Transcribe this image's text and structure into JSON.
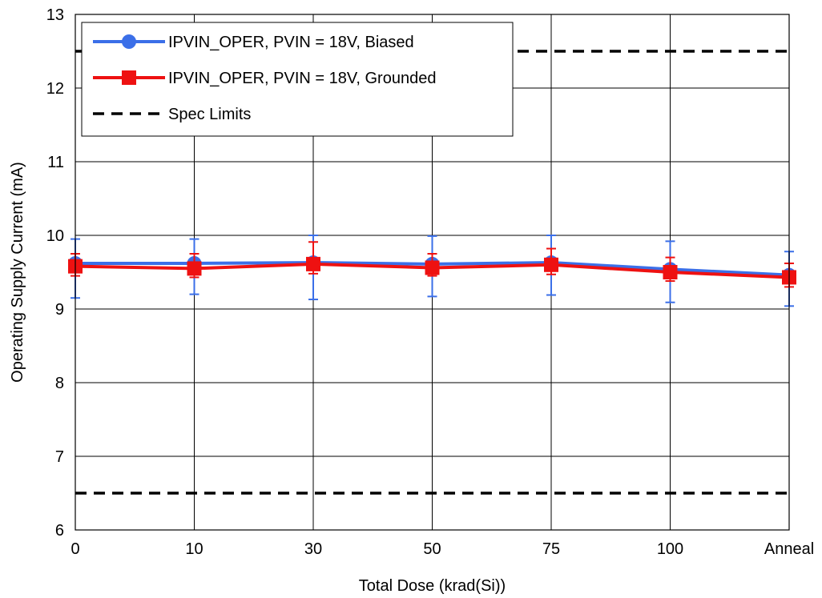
{
  "chart_data": {
    "type": "line",
    "title": "",
    "xlabel": "Total Dose (krad(Si))",
    "ylabel": "Operating Supply Current (mA)",
    "categories": [
      "0",
      "10",
      "30",
      "50",
      "75",
      "100",
      "Anneal"
    ],
    "ylim": [
      6,
      13
    ],
    "yticks": [
      6,
      7,
      8,
      9,
      10,
      11,
      12,
      13
    ],
    "grid": true,
    "legend_position": "top-left",
    "series": [
      {
        "name": "IPVIN_OPER, PVIN = 18V, Biased",
        "color": "#3b6fe8",
        "marker": "circle",
        "values": [
          9.62,
          9.62,
          9.63,
          9.61,
          9.63,
          9.54,
          9.46
        ],
        "error_low": [
          9.15,
          9.2,
          9.13,
          9.17,
          9.19,
          9.09,
          9.04
        ],
        "error_high": [
          9.95,
          9.95,
          10.0,
          9.99,
          10.0,
          9.92,
          9.78
        ]
      },
      {
        "name": "IPVIN_OPER, PVIN = 18V, Grounded",
        "color": "#ee1111",
        "marker": "square",
        "values": [
          9.58,
          9.55,
          9.61,
          9.56,
          9.6,
          9.5,
          9.43
        ],
        "error_low": [
          9.45,
          9.43,
          9.48,
          9.45,
          9.47,
          9.38,
          9.3
        ],
        "error_high": [
          9.75,
          9.75,
          9.91,
          9.75,
          9.82,
          9.7,
          9.62
        ]
      }
    ],
    "spec_limits": {
      "name": "Spec Limits",
      "color": "#000000",
      "values": [
        12.5,
        6.5
      ]
    }
  }
}
